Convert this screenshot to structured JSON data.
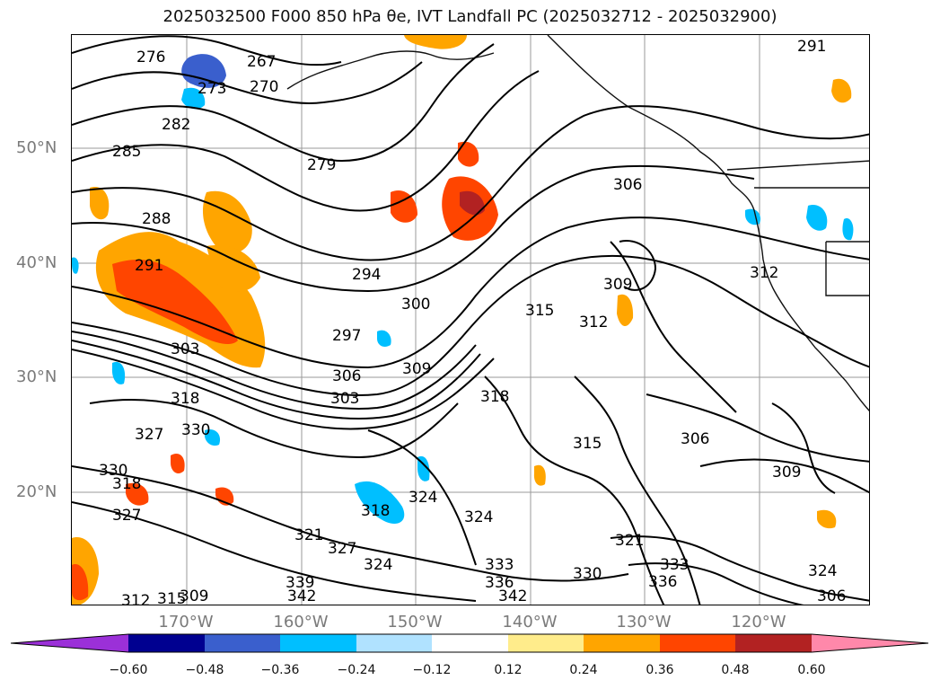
{
  "title": "2025032500 F000 850 hPa θe, IVT Landfall PC (2025032712 - 2025032900)",
  "lat_labels": [
    "50°N",
    "40°N",
    "30°N",
    "20°N"
  ],
  "lon_labels": [
    "170°W",
    "160°W",
    "150°W",
    "140°W",
    "130°W",
    "120°W"
  ],
  "contour_labels": [
    "276",
    "267",
    "273",
    "270",
    "282",
    "285",
    "279",
    "291",
    "288",
    "291",
    "294",
    "300",
    "297",
    "303",
    "306",
    "309",
    "312",
    "303",
    "306",
    "309",
    "315",
    "312",
    "318",
    "318",
    "315",
    "327",
    "330",
    "330",
    "327",
    "321",
    "327",
    "324",
    "318",
    "324",
    "324",
    "321",
    "330",
    "333",
    "336",
    "339",
    "342",
    "333",
    "336",
    "342",
    "324",
    "306",
    "309",
    "312",
    "315",
    "318",
    "306",
    "309"
  ],
  "colorbar": {
    "ticks": [
      "−0.60",
      "−0.48",
      "−0.36",
      "−0.24",
      "−0.12",
      "0.12",
      "0.24",
      "0.36",
      "0.48",
      "0.60"
    ],
    "colors": [
      "#9b30d8",
      "#000090",
      "#3a5fcd",
      "#00bfff",
      "#b0e2ff",
      "#ffffff",
      "#ffec8b",
      "#ffa500",
      "#ff4500",
      "#b22222",
      "#ff88aa"
    ]
  }
}
